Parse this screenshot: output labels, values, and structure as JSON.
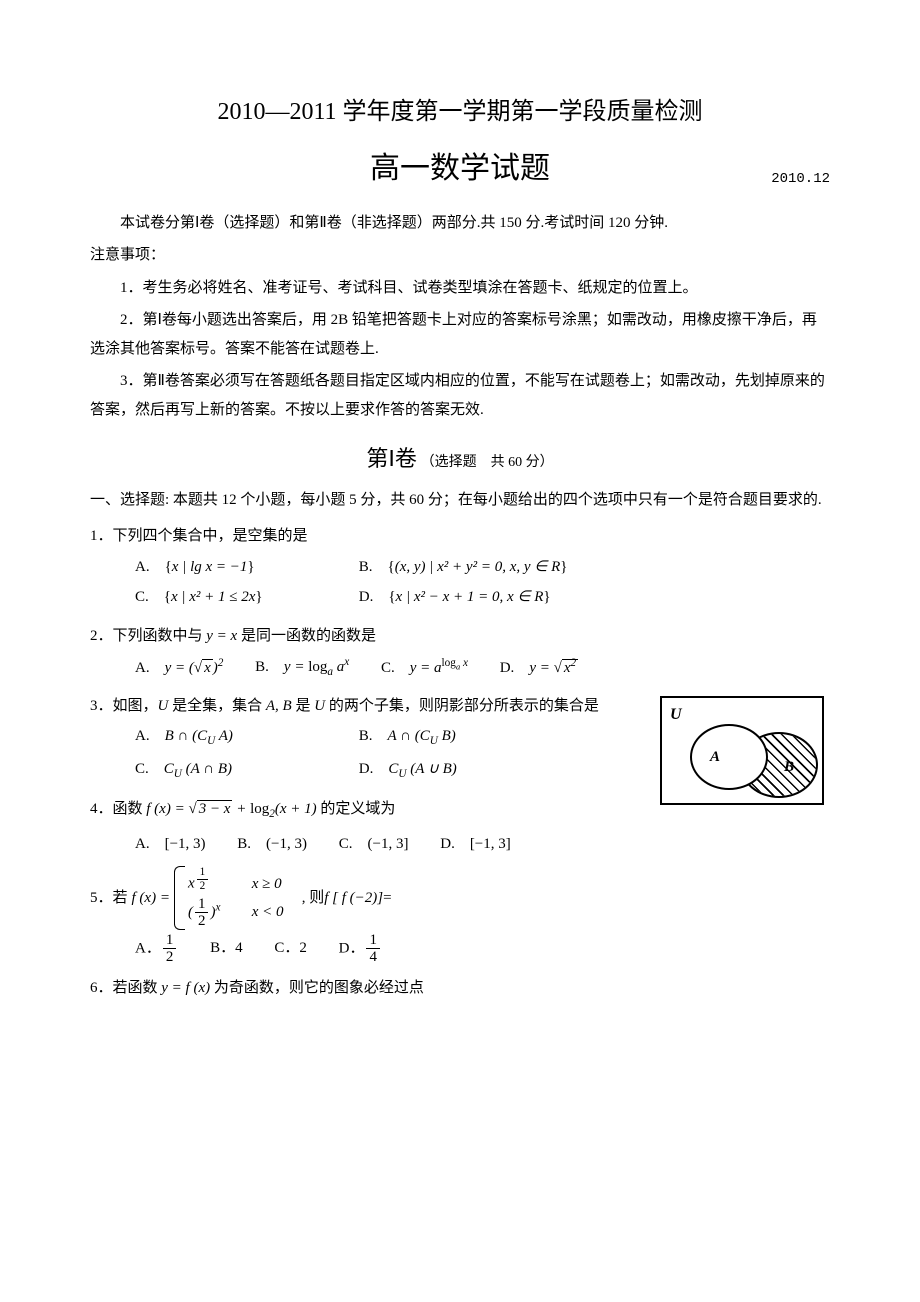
{
  "header": {
    "line1": "2010—2011 学年度第一学期第一学段质量检测",
    "line2": "高一数学试题",
    "date": "2010.12"
  },
  "intro": {
    "p1": "本试卷分第Ⅰ卷（选择题）和第Ⅱ卷（非选择题）两部分.共 150 分.考试时间 120 分钟.",
    "notice": "注意事项：",
    "n1": "1．考生务必将姓名、准考证号、考试科目、试卷类型填涂在答题卡、纸规定的位置上。",
    "n2": "2．第Ⅰ卷每小题选出答案后，用 2B 铅笔把答题卡上对应的答案标号涂黑；如需改动，用橡皮擦干净后，再选涂其他答案标号。答案不能答在试题卷上.",
    "n3": "3．第Ⅱ卷答案必须写在答题纸各题目指定区域内相应的位置，不能写在试题卷上；如需改动，先划掉原来的答案，然后再写上新的答案。不按以上要求作答的答案无效."
  },
  "section1": {
    "big": "第Ⅰ卷",
    "small": "（选择题　共 60 分）",
    "lead": "一、选择题: 本题共 12 个小题，每小题 5 分，共 60 分；在每小题给出的四个选项中只有一个是符合题目要求的."
  },
  "q1": {
    "stem": "1．下列四个集合中，是空集的是",
    "A_pre": "A.　{",
    "A_math": "x | lg x = −1",
    "A_post": "}",
    "B_pre": "B.　{",
    "B_math": "(x, y) | x² + y² = 0, x, y ∈ R",
    "B_post": "}",
    "C_pre": "C.　{",
    "C_math": "x | x² + 1 ≤ 2x",
    "C_post": "}",
    "D_pre": "D.　{",
    "D_math": "x | x² − x + 1 = 0, x ∈ R",
    "D_post": "}"
  },
  "q2": {
    "stem_pre": "2．下列函数中与 ",
    "stem_math": "y = x",
    "stem_post": " 是同一函数的函数是",
    "A": "A.　",
    "B": "B.　",
    "C": "C.　",
    "D": "D.　"
  },
  "q3": {
    "stem_pre": "3．如图，",
    "stem_mid": " 是全集，集合 ",
    "stem_post": " 的两个子集，则阴影部分所表示的集合是",
    "U": "U",
    "AB": "A, B",
    "isU": " 是 ",
    "A": "A.　",
    "B": "B.　",
    "C": "C.　",
    "D": "D.　",
    "venn": {
      "U": "U",
      "A": "A",
      "B": "B"
    }
  },
  "q4": {
    "stem_pre": "4．函数 ",
    "stem_post": " 的定义域为",
    "A": "A.　[−1, 3)",
    "B": "B.　(−1, 3)",
    "C": "C.　(−1, 3]",
    "D": "D.　[−1, 3]"
  },
  "q5": {
    "stem_pre": "5．若 ",
    "stem_mid": " , 则 ",
    "stem_post": " =",
    "A": "A．",
    "B": "B．4",
    "C": "C．2",
    "D": "D．"
  },
  "q6": {
    "stem_pre": "6．若函数 ",
    "stem_math": "y = f (x)",
    "stem_post": " 为奇函数，则它的图象必经过点"
  }
}
